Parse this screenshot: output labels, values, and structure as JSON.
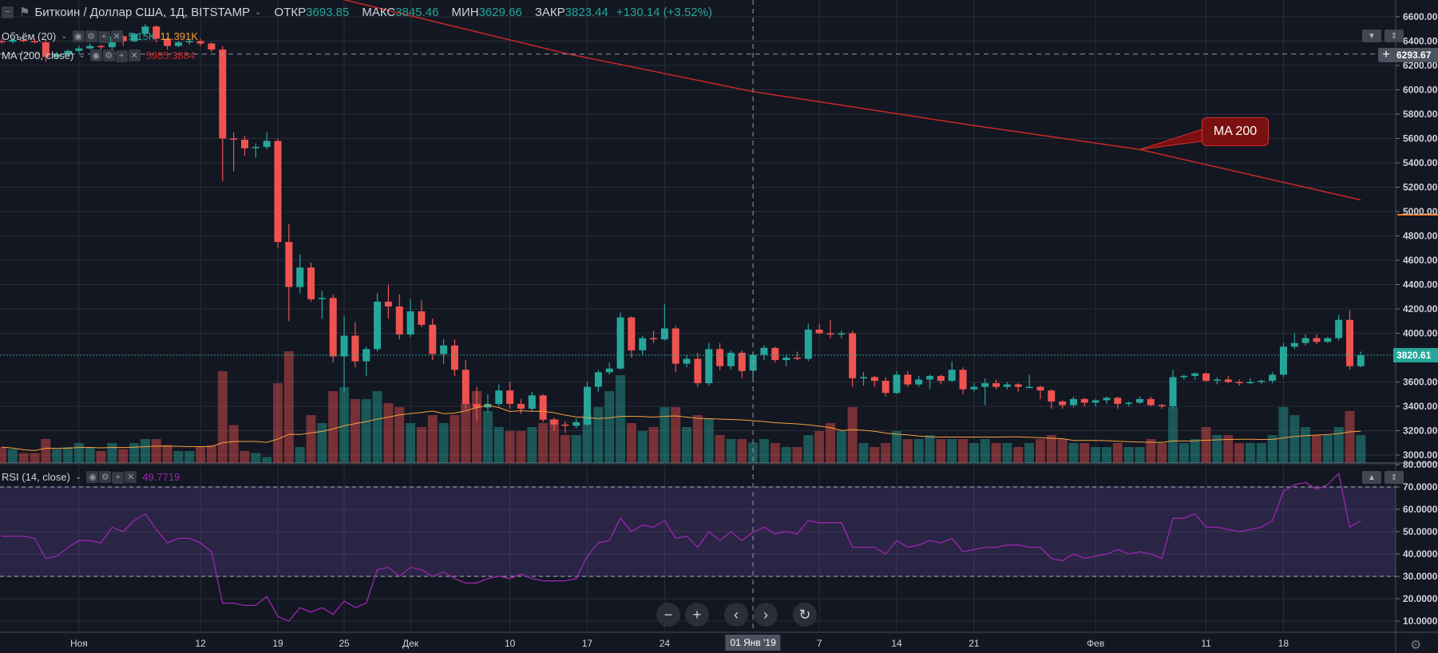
{
  "header": {
    "title": "Биткоин / Доллар США, 1Д, BITSTAMP",
    "open_label": "ОТКР",
    "open": "3693.85",
    "high_label": "МАКС",
    "high": "3845.46",
    "low_label": "МИН",
    "low": "3629.66",
    "close_label": "ЗАКР",
    "close": "3823.44",
    "change": "+130.14 (+3.52%)"
  },
  "indicators": {
    "volume": {
      "label": "Объём (20)",
      "value": "5.15K",
      "ma_value": "11.391K"
    },
    "ma": {
      "label": "MA (200, close)",
      "value": "5985.3884"
    },
    "rsi": {
      "label": "RSI (14, close)",
      "value": "49.7719"
    }
  },
  "crosshair": {
    "price": "6293.67",
    "date": "01 Янв '19"
  },
  "last_price": "3820.61",
  "callout": {
    "text": "MA 200"
  },
  "nav": {
    "zoom_out": "−",
    "zoom_in": "+",
    "scroll_left": "‹",
    "scroll_right": "›",
    "reset": "↻"
  },
  "colors": {
    "background": "#131722",
    "up": "#26a69a",
    "down": "#ef5350",
    "ma200": "#c62828",
    "volume_ma": "#f7a13c",
    "rsi": "#9c27b0",
    "alert_line": "#ff7a1a"
  },
  "icons": [
    "collapse-icon",
    "flag-icon",
    "eye-icon",
    "gear-icon",
    "plus-icon",
    "close-icon",
    "chevron-down-icon",
    "settings-icon"
  ],
  "chart_data": {
    "type": "candlestick",
    "title": "Биткоин / Доллар США, 1Д, BITSTAMP",
    "price_axis": {
      "range": [
        3000,
        6600
      ],
      "ticks": [
        "6600.00",
        "6400.00",
        "6200.00",
        "6000.00",
        "5800.00",
        "5600.00",
        "5400.00",
        "5200.00",
        "5000.00",
        "4800.00",
        "4600.00",
        "4400.00",
        "4200.00",
        "4000.00",
        "3600.00",
        "3400.00",
        "3200.00",
        "3000.00"
      ]
    },
    "rsi_axis": {
      "range": [
        10,
        80
      ],
      "ticks": [
        "80.0000",
        "70.0000",
        "60.0000",
        "50.0000",
        "40.0000",
        "30.0000",
        "20.0000",
        "10.0000"
      ],
      "bands": [
        30,
        70
      ]
    },
    "time_labels": [
      {
        "label": "Ноя",
        "date": "2018-11-01"
      },
      {
        "label": "12",
        "date": "2018-11-12"
      },
      {
        "label": "19",
        "date": "2018-11-19"
      },
      {
        "label": "25",
        "date": "2018-11-25"
      },
      {
        "label": "Дек",
        "date": "2018-12-01"
      },
      {
        "label": "10",
        "date": "2018-12-10"
      },
      {
        "label": "17",
        "date": "2018-12-17"
      },
      {
        "label": "24",
        "date": "2018-12-24"
      },
      {
        "label": "7",
        "date": "2019-01-07"
      },
      {
        "label": "14",
        "date": "2019-01-14"
      },
      {
        "label": "21",
        "date": "2019-01-21"
      },
      {
        "label": "Фев",
        "date": "2019-02-01"
      },
      {
        "label": "11",
        "date": "2019-02-11"
      },
      {
        "label": "18",
        "date": "2019-02-18"
      }
    ],
    "crosshair_date": "2019-01-01",
    "crosshair_price": 6293.67,
    "alert_price": 5000,
    "candle_columns": [
      "date",
      "open",
      "high",
      "low",
      "close",
      "volume_k"
    ],
    "candles": [
      [
        "2018-10-25",
        6400,
        6420,
        6380,
        6395,
        4
      ],
      [
        "2018-10-26",
        6395,
        6430,
        6380,
        6410,
        3.5
      ],
      [
        "2018-10-27",
        6410,
        6430,
        6390,
        6400,
        2.5
      ],
      [
        "2018-10-28",
        6400,
        6420,
        6380,
        6390,
        2.5
      ],
      [
        "2018-10-29",
        6390,
        6410,
        6230,
        6270,
        6
      ],
      [
        "2018-10-30",
        6270,
        6310,
        6250,
        6290,
        3.5
      ],
      [
        "2018-10-31",
        6290,
        6330,
        6270,
        6320,
        4
      ],
      [
        "2018-11-01",
        6320,
        6360,
        6300,
        6340,
        5
      ],
      [
        "2018-11-02",
        6340,
        6380,
        6330,
        6360,
        4
      ],
      [
        "2018-11-03",
        6360,
        6370,
        6330,
        6350,
        3
      ],
      [
        "2018-11-04",
        6350,
        6460,
        6330,
        6440,
        5
      ],
      [
        "2018-11-05",
        6440,
        6450,
        6360,
        6400,
        3.5
      ],
      [
        "2018-11-06",
        6400,
        6470,
        6390,
        6460,
        5
      ],
      [
        "2018-11-07",
        6460,
        6540,
        6440,
        6520,
        6
      ],
      [
        "2018-11-08",
        6520,
        6530,
        6390,
        6420,
        6
      ],
      [
        "2018-11-09",
        6420,
        6430,
        6330,
        6360,
        4.5
      ],
      [
        "2018-11-10",
        6360,
        6400,
        6350,
        6390,
        3
      ],
      [
        "2018-11-11",
        6390,
        6410,
        6370,
        6400,
        3
      ],
      [
        "2018-11-12",
        6400,
        6420,
        6360,
        6380,
        4
      ],
      [
        "2018-11-13",
        6380,
        6390,
        6310,
        6330,
        4.5
      ],
      [
        "2018-11-14",
        6330,
        6360,
        5250,
        5600,
        23
      ],
      [
        "2018-11-15",
        5600,
        5650,
        5330,
        5590,
        9.5
      ],
      [
        "2018-11-16",
        5590,
        5620,
        5460,
        5520,
        3
      ],
      [
        "2018-11-17",
        5520,
        5560,
        5440,
        5530,
        2.5
      ],
      [
        "2018-11-18",
        5530,
        5650,
        5510,
        5580,
        1.5
      ],
      [
        "2018-11-19",
        5580,
        5600,
        4700,
        4750,
        20
      ],
      [
        "2018-11-20",
        4750,
        4900,
        4100,
        4380,
        28
      ],
      [
        "2018-11-21",
        4380,
        4650,
        4330,
        4540,
        4
      ],
      [
        "2018-11-22",
        4540,
        4580,
        4260,
        4280,
        12
      ],
      [
        "2018-11-23",
        4280,
        4350,
        4120,
        4290,
        10
      ],
      [
        "2018-11-24",
        4290,
        4320,
        3760,
        3810,
        18
      ],
      [
        "2018-11-25",
        3810,
        4140,
        3520,
        3980,
        19
      ],
      [
        "2018-11-26",
        3980,
        4090,
        3720,
        3770,
        16
      ],
      [
        "2018-11-27",
        3770,
        3890,
        3650,
        3870,
        16
      ],
      [
        "2018-11-28",
        3870,
        4330,
        3850,
        4260,
        18
      ],
      [
        "2018-11-29",
        4260,
        4400,
        4120,
        4220,
        15
      ],
      [
        "2018-11-30",
        4220,
        4320,
        3950,
        3990,
        14
      ],
      [
        "2018-12-01",
        3990,
        4280,
        3970,
        4180,
        10
      ],
      [
        "2018-12-02",
        4180,
        4270,
        4050,
        4070,
        9
      ],
      [
        "2018-12-03",
        4070,
        4120,
        3780,
        3830,
        12
      ],
      [
        "2018-12-04",
        3830,
        3950,
        3750,
        3900,
        10
      ],
      [
        "2018-12-05",
        3900,
        3950,
        3650,
        3700,
        12
      ],
      [
        "2018-12-06",
        3700,
        3780,
        3380,
        3420,
        15
      ],
      [
        "2018-12-07",
        3420,
        3560,
        3280,
        3390,
        18
      ],
      [
        "2018-12-08",
        3390,
        3500,
        3350,
        3420,
        13
      ],
      [
        "2018-12-09",
        3420,
        3580,
        3400,
        3530,
        9
      ],
      [
        "2018-12-10",
        3530,
        3600,
        3380,
        3420,
        8
      ],
      [
        "2018-12-11",
        3420,
        3460,
        3340,
        3380,
        8
      ],
      [
        "2018-12-12",
        3380,
        3520,
        3360,
        3490,
        9
      ],
      [
        "2018-12-13",
        3490,
        3500,
        3270,
        3290,
        10
      ],
      [
        "2018-12-14",
        3290,
        3310,
        3200,
        3250,
        11
      ],
      [
        "2018-12-15",
        3250,
        3280,
        3180,
        3240,
        7
      ],
      [
        "2018-12-16",
        3240,
        3300,
        3220,
        3270,
        7
      ],
      [
        "2018-12-17",
        3250,
        3600,
        3240,
        3560,
        12
      ],
      [
        "2018-12-18",
        3560,
        3700,
        3520,
        3680,
        14
      ],
      [
        "2018-12-19",
        3680,
        3760,
        3660,
        3710,
        18
      ],
      [
        "2018-12-20",
        3710,
        4170,
        3700,
        4130,
        22
      ],
      [
        "2018-12-21",
        4130,
        4140,
        3800,
        3860,
        10
      ],
      [
        "2018-12-22",
        3860,
        3980,
        3820,
        3960,
        8
      ],
      [
        "2018-12-23",
        3960,
        4020,
        3920,
        3950,
        9
      ],
      [
        "2018-12-24",
        3950,
        4240,
        3940,
        4040,
        14
      ],
      [
        "2018-12-25",
        4040,
        4060,
        3680,
        3750,
        14
      ],
      [
        "2018-12-26",
        3750,
        3820,
        3720,
        3790,
        9
      ],
      [
        "2018-12-27",
        3790,
        3840,
        3560,
        3590,
        12
      ],
      [
        "2018-12-28",
        3590,
        3920,
        3570,
        3870,
        11
      ],
      [
        "2018-12-29",
        3870,
        3920,
        3700,
        3730,
        7
      ],
      [
        "2018-12-30",
        3730,
        3860,
        3700,
        3840,
        6
      ],
      [
        "2018-12-31",
        3840,
        3860,
        3630,
        3690,
        6
      ],
      [
        "2019-01-01",
        3693.85,
        3845.46,
        3629.66,
        3823.44,
        5.15
      ],
      [
        "2019-01-02",
        3823,
        3900,
        3780,
        3880,
        6
      ],
      [
        "2019-01-03",
        3880,
        3890,
        3760,
        3780,
        5
      ],
      [
        "2019-01-04",
        3780,
        3820,
        3730,
        3800,
        4
      ],
      [
        "2019-01-05",
        3800,
        3850,
        3780,
        3790,
        4
      ],
      [
        "2019-01-06",
        3790,
        4080,
        3770,
        4030,
        7
      ],
      [
        "2019-01-07",
        4030,
        4080,
        3990,
        4000,
        8
      ],
      [
        "2019-01-08",
        4000,
        4110,
        3960,
        3990,
        10
      ],
      [
        "2019-01-09",
        3990,
        4020,
        3960,
        4000,
        8
      ],
      [
        "2019-01-10",
        4000,
        4020,
        3560,
        3630,
        14
      ],
      [
        "2019-01-11",
        3630,
        3680,
        3570,
        3640,
        5
      ],
      [
        "2019-01-12",
        3640,
        3650,
        3560,
        3610,
        4
      ],
      [
        "2019-01-13",
        3610,
        3640,
        3480,
        3510,
        5
      ],
      [
        "2019-01-14",
        3510,
        3690,
        3500,
        3660,
        8
      ],
      [
        "2019-01-15",
        3660,
        3690,
        3560,
        3580,
        6
      ],
      [
        "2019-01-16",
        3580,
        3650,
        3560,
        3620,
        6
      ],
      [
        "2019-01-17",
        3620,
        3660,
        3540,
        3650,
        7
      ],
      [
        "2019-01-18",
        3650,
        3660,
        3580,
        3610,
        6
      ],
      [
        "2019-01-19",
        3610,
        3770,
        3600,
        3700,
        6
      ],
      [
        "2019-01-20",
        3700,
        3720,
        3500,
        3540,
        6
      ],
      [
        "2019-01-21",
        3540,
        3590,
        3520,
        3560,
        5
      ],
      [
        "2019-01-22",
        3560,
        3630,
        3410,
        3590,
        6
      ],
      [
        "2019-01-23",
        3590,
        3620,
        3540,
        3560,
        5
      ],
      [
        "2019-01-24",
        3560,
        3600,
        3540,
        3580,
        5
      ],
      [
        "2019-01-25",
        3580,
        3590,
        3520,
        3560,
        4
      ],
      [
        "2019-01-26",
        3560,
        3660,
        3550,
        3560,
        5
      ],
      [
        "2019-01-27",
        3560,
        3570,
        3460,
        3530,
        6
      ],
      [
        "2019-01-28",
        3530,
        3540,
        3380,
        3440,
        7
      ],
      [
        "2019-01-29",
        3440,
        3450,
        3380,
        3410,
        6
      ],
      [
        "2019-01-30",
        3410,
        3480,
        3390,
        3460,
        5
      ],
      [
        "2019-01-31",
        3460,
        3470,
        3400,
        3430,
        5
      ],
      [
        "2019-02-01",
        3430,
        3460,
        3400,
        3450,
        4
      ],
      [
        "2019-02-02",
        3450,
        3480,
        3420,
        3470,
        4
      ],
      [
        "2019-02-03",
        3470,
        3480,
        3380,
        3420,
        5
      ],
      [
        "2019-02-04",
        3420,
        3440,
        3400,
        3430,
        4
      ],
      [
        "2019-02-05",
        3430,
        3480,
        3420,
        3460,
        4
      ],
      [
        "2019-02-06",
        3460,
        3480,
        3400,
        3410,
        6
      ],
      [
        "2019-02-07",
        3410,
        3420,
        3380,
        3400,
        5
      ],
      [
        "2019-02-08",
        3400,
        3700,
        3380,
        3640,
        14
      ],
      [
        "2019-02-09",
        3640,
        3660,
        3620,
        3650,
        5
      ],
      [
        "2019-02-10",
        3650,
        3680,
        3620,
        3670,
        6
      ],
      [
        "2019-02-11",
        3670,
        3680,
        3600,
        3610,
        9
      ],
      [
        "2019-02-12",
        3610,
        3640,
        3580,
        3620,
        7
      ],
      [
        "2019-02-13",
        3620,
        3650,
        3590,
        3600,
        7
      ],
      [
        "2019-02-14",
        3600,
        3620,
        3570,
        3590,
        5
      ],
      [
        "2019-02-15",
        3590,
        3630,
        3580,
        3600,
        5
      ],
      [
        "2019-02-16",
        3600,
        3620,
        3580,
        3610,
        5
      ],
      [
        "2019-02-17",
        3610,
        3680,
        3590,
        3660,
        7
      ],
      [
        "2019-02-18",
        3660,
        3920,
        3640,
        3890,
        14
      ],
      [
        "2019-02-19",
        3890,
        4000,
        3870,
        3920,
        12
      ],
      [
        "2019-02-20",
        3920,
        3990,
        3900,
        3960,
        9
      ],
      [
        "2019-02-21",
        3960,
        3990,
        3910,
        3930,
        7
      ],
      [
        "2019-02-22",
        3930,
        3970,
        3920,
        3960,
        7
      ],
      [
        "2019-02-23",
        3960,
        4150,
        3940,
        4110,
        9
      ],
      [
        "2019-02-24",
        4110,
        4190,
        3700,
        3730,
        13
      ],
      [
        "2019-02-25",
        3730,
        3850,
        3720,
        3820.61,
        7
      ]
    ],
    "ma200": [
      {
        "date": "2018-11-25",
        "value": 6740
      },
      {
        "date": "2018-12-15",
        "value": 6300
      },
      {
        "date": "2019-01-01",
        "value": 5985.39
      },
      {
        "date": "2019-01-20",
        "value": 5720
      },
      {
        "date": "2019-02-05",
        "value": 5510
      },
      {
        "date": "2019-02-25",
        "value": 5095
      }
    ],
    "rsi": [
      48,
      48,
      48,
      47,
      38,
      39,
      43,
      46,
      46,
      45,
      52,
      50,
      55,
      58,
      51,
      45,
      47,
      47,
      45,
      41,
      18,
      18,
      17,
      17,
      21,
      12,
      10,
      16,
      14,
      16,
      13,
      19,
      16,
      18,
      33,
      34,
      30,
      34,
      33,
      30,
      32,
      29,
      27,
      27,
      29,
      30,
      29,
      31,
      29,
      28,
      28,
      28,
      29,
      39,
      45,
      46,
      56,
      50,
      53,
      52,
      55,
      47,
      48,
      43,
      50,
      46,
      50,
      46,
      49.77,
      52,
      49,
      50,
      49,
      55,
      54,
      54,
      54,
      43,
      43,
      43,
      40,
      46,
      43,
      44,
      46,
      45,
      47,
      41,
      42,
      43,
      43,
      44,
      44,
      43,
      43,
      38,
      37,
      40,
      38,
      39,
      40,
      42,
      40,
      41,
      40,
      38,
      56,
      56,
      58,
      52,
      52,
      51,
      50,
      51,
      52,
      55,
      68,
      71,
      72,
      69,
      71,
      76,
      52,
      55
    ]
  }
}
